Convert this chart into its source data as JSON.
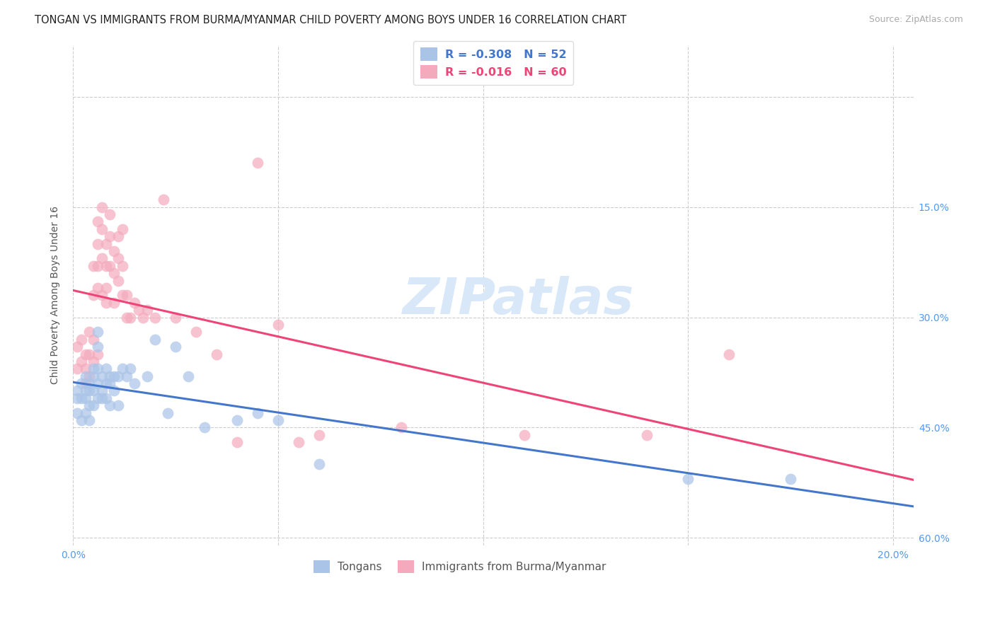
{
  "title": "TONGAN VS IMMIGRANTS FROM BURMA/MYANMAR CHILD POVERTY AMONG BOYS UNDER 16 CORRELATION CHART",
  "source": "Source: ZipAtlas.com",
  "ylabel": "Child Poverty Among Boys Under 16",
  "xlim": [
    0.0,
    0.205
  ],
  "ylim": [
    -0.01,
    0.67
  ],
  "xticks": [
    0.0,
    0.05,
    0.1,
    0.15,
    0.2
  ],
  "yticks": [
    0.0,
    0.15,
    0.3,
    0.45,
    0.6
  ],
  "xtick_labels": [
    "0.0%",
    "",
    "",
    "",
    "20.0%"
  ],
  "ytick_labels_left": [
    "",
    "",
    "",
    "",
    ""
  ],
  "ytick_labels_right": [
    "60.0%",
    "45.0%",
    "30.0%",
    "15.0%",
    ""
  ],
  "grid_color": "#cccccc",
  "background_color": "#ffffff",
  "title_color": "#222222",
  "title_fontsize": 10.5,
  "source_color": "#aaaaaa",
  "source_fontsize": 9,
  "blue_marker_color": "#aac4e8",
  "pink_marker_color": "#f4aabc",
  "blue_line_color": "#4477cc",
  "pink_line_color": "#ee4477",
  "legend_text_blue": "R = -0.308   N = 52",
  "legend_text_pink": "R = -0.016   N = 60",
  "legend_label_blue": "Tongans",
  "legend_label_pink": "Immigrants from Burma/Myanmar",
  "watermark": "ZIPatlas",
  "watermark_color": "#d8e8f8",
  "watermark_fontsize": 52,
  "blue_points_x": [
    0.001,
    0.001,
    0.001,
    0.002,
    0.002,
    0.002,
    0.003,
    0.003,
    0.003,
    0.003,
    0.004,
    0.004,
    0.004,
    0.004,
    0.005,
    0.005,
    0.005,
    0.005,
    0.006,
    0.006,
    0.006,
    0.006,
    0.006,
    0.007,
    0.007,
    0.007,
    0.008,
    0.008,
    0.008,
    0.009,
    0.009,
    0.009,
    0.01,
    0.01,
    0.011,
    0.011,
    0.012,
    0.013,
    0.014,
    0.015,
    0.018,
    0.02,
    0.023,
    0.025,
    0.028,
    0.032,
    0.04,
    0.045,
    0.05,
    0.06,
    0.15,
    0.175
  ],
  "blue_points_y": [
    0.2,
    0.19,
    0.17,
    0.21,
    0.19,
    0.16,
    0.22,
    0.2,
    0.19,
    0.17,
    0.21,
    0.2,
    0.18,
    0.16,
    0.23,
    0.22,
    0.2,
    0.18,
    0.28,
    0.26,
    0.23,
    0.21,
    0.19,
    0.22,
    0.2,
    0.19,
    0.23,
    0.21,
    0.19,
    0.22,
    0.21,
    0.18,
    0.22,
    0.2,
    0.22,
    0.18,
    0.23,
    0.22,
    0.23,
    0.21,
    0.22,
    0.27,
    0.17,
    0.26,
    0.22,
    0.15,
    0.16,
    0.17,
    0.16,
    0.1,
    0.08,
    0.08
  ],
  "pink_points_x": [
    0.001,
    0.001,
    0.002,
    0.002,
    0.003,
    0.003,
    0.003,
    0.004,
    0.004,
    0.004,
    0.005,
    0.005,
    0.005,
    0.005,
    0.006,
    0.006,
    0.006,
    0.006,
    0.006,
    0.007,
    0.007,
    0.007,
    0.007,
    0.008,
    0.008,
    0.008,
    0.008,
    0.009,
    0.009,
    0.009,
    0.01,
    0.01,
    0.01,
    0.011,
    0.011,
    0.011,
    0.012,
    0.012,
    0.012,
    0.013,
    0.013,
    0.014,
    0.015,
    0.016,
    0.017,
    0.018,
    0.02,
    0.022,
    0.025,
    0.03,
    0.035,
    0.04,
    0.045,
    0.05,
    0.055,
    0.06,
    0.08,
    0.11,
    0.14,
    0.16
  ],
  "pink_points_y": [
    0.26,
    0.23,
    0.27,
    0.24,
    0.25,
    0.23,
    0.21,
    0.28,
    0.25,
    0.22,
    0.37,
    0.33,
    0.27,
    0.24,
    0.43,
    0.4,
    0.37,
    0.34,
    0.25,
    0.45,
    0.42,
    0.38,
    0.33,
    0.4,
    0.37,
    0.34,
    0.32,
    0.44,
    0.41,
    0.37,
    0.39,
    0.36,
    0.32,
    0.41,
    0.38,
    0.35,
    0.42,
    0.37,
    0.33,
    0.33,
    0.3,
    0.3,
    0.32,
    0.31,
    0.3,
    0.31,
    0.3,
    0.46,
    0.3,
    0.28,
    0.25,
    0.13,
    0.51,
    0.29,
    0.13,
    0.14,
    0.15,
    0.14,
    0.14,
    0.25
  ]
}
